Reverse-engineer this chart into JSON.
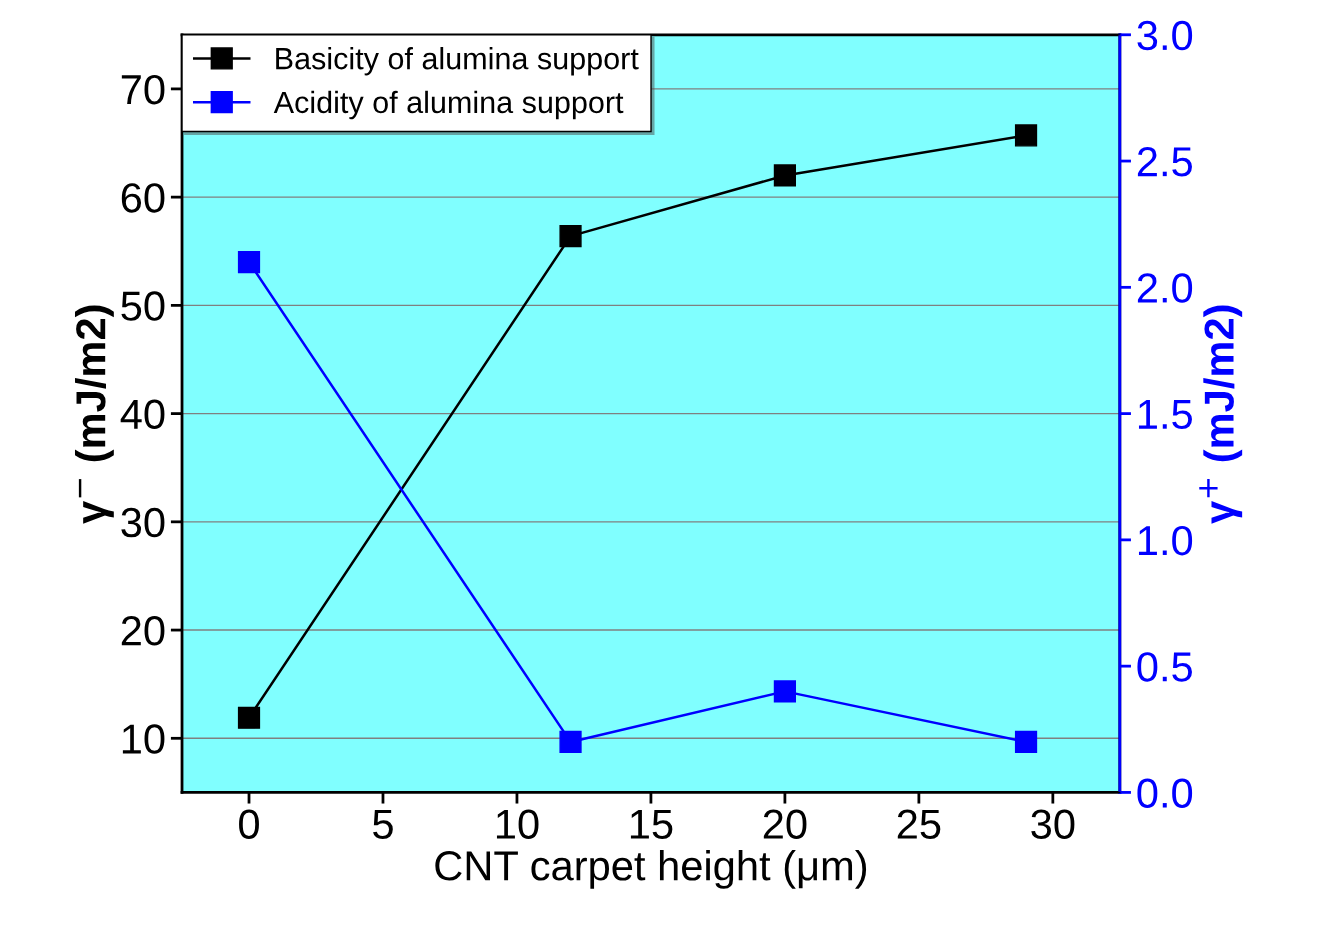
{
  "chart_data": {
    "type": "line",
    "xlabel": "CNT carpet height (μm)",
    "ylabel": "γ$^{−}$ (mJ/m2)",
    "y2label": "γ$^{+}$ (mJ/m2)",
    "x": [
      0,
      12,
      20,
      29
    ],
    "series": [
      {
        "name": "Basicity of alumina support",
        "color": "#000000",
        "values": [
          11.9,
          56.4,
          62.0,
          65.7
        ]
      },
      {
        "name": "Acidity of alumina support",
        "color": "#0000ff",
        "values": [
          2.1,
          0.2,
          0.4,
          0.2
        ],
        "axis": "y2"
      }
    ],
    "xlim": [
      -2.5,
      32.5
    ],
    "xticks": [
      0,
      5,
      10,
      15,
      20,
      25,
      30
    ],
    "ylim": [
      5,
      75
    ],
    "yticks": [
      10,
      20,
      30,
      40,
      50,
      60,
      70
    ],
    "y2lim": [
      0,
      3.0
    ],
    "y2ticks": [
      {
        "value": 0,
        "label": "0.0"
      },
      {
        "value": 0.5,
        "label": "0.5"
      },
      {
        "value": 1.0,
        "label": "1.0"
      },
      {
        "value": 1.5,
        "label": "1.5"
      },
      {
        "value": 2.0,
        "label": "2.0"
      },
      {
        "value": 2.5,
        "label": "2.5"
      },
      {
        "value": 3.0,
        "label": "3.0"
      }
    ],
    "grid": "y",
    "legend": "top left",
    "marker": "square",
    "line_style": "solid"
  }
}
